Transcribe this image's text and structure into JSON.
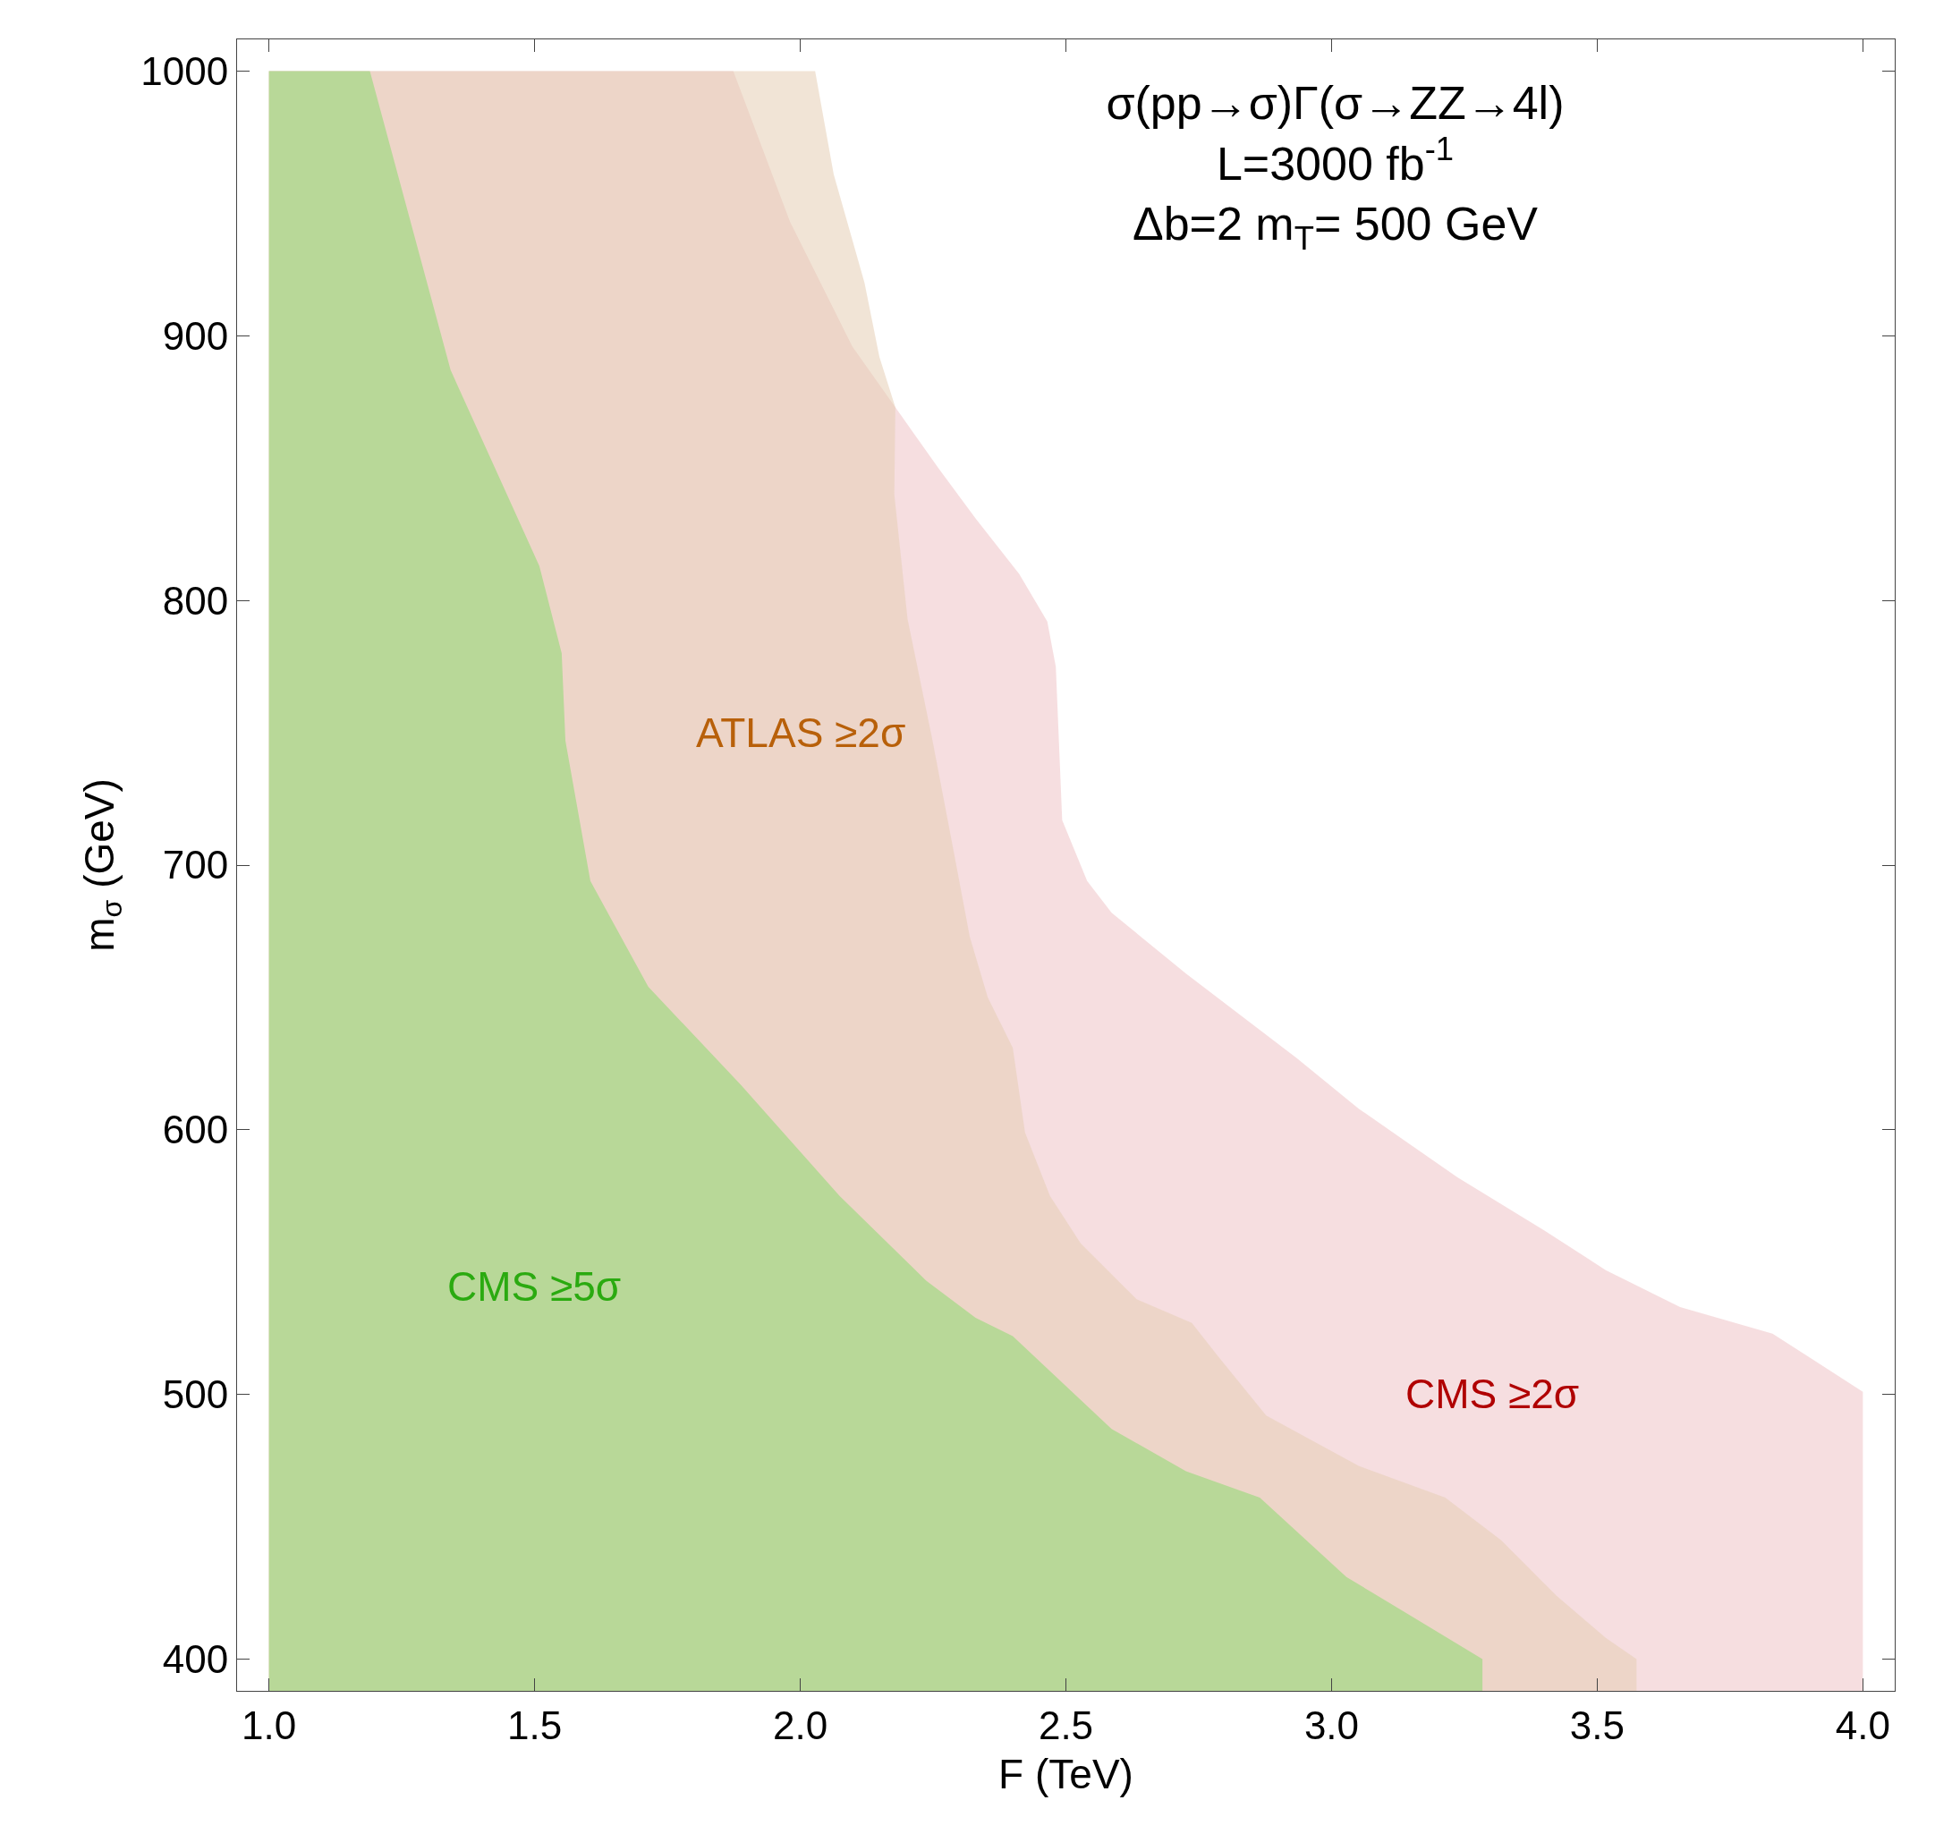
{
  "chart_data": {
    "type": "area",
    "title": "σ(pp→σ)Γ(σ→ZZ→4l)\nL=3000 fb$^{-1}$\nΔb=2 m$_{T}$= 500 GeV",
    "xlabel": "F (TeV)",
    "ylabel": "m$_{σ}$ (GeV)",
    "xlim": [
      0.94,
      4.06
    ],
    "ylim": [
      388,
      1012
    ],
    "xticks": [
      {
        "value": 1,
        "label": "1.0"
      },
      {
        "value": 1.5,
        "label": "1.5"
      },
      {
        "value": 2,
        "label": "2.0"
      },
      {
        "value": 2.5,
        "label": "2.5"
      },
      {
        "value": 3,
        "label": "3.0"
      },
      {
        "value": 3.5,
        "label": "3.5"
      },
      {
        "value": 4,
        "label": "4.0"
      }
    ],
    "yticks": [
      400,
      500,
      600,
      700,
      800,
      900,
      1000
    ],
    "series": [
      {
        "color": "#f0c8cc",
        "x": [
          1.0,
          1.874,
          1.981,
          2.098,
          2.179,
          2.26,
          2.33,
          2.412,
          2.465,
          2.481,
          2.493,
          2.54,
          2.586,
          2.726,
          2.935,
          3.051,
          3.237,
          3.4,
          3.516,
          3.656,
          3.83,
          4.0,
          4.0
        ],
        "values": [
          1000,
          1000,
          943,
          896,
          873,
          850,
          831,
          810,
          792,
          775,
          717,
          694,
          682,
          659,
          627,
          608,
          582,
          562,
          547,
          533,
          523,
          501,
          400
        ]
      },
      {
        "color": "#e6cdb5",
        "x": [
          1.0,
          2.028,
          2.063,
          2.121,
          2.149,
          2.179,
          2.177,
          2.202,
          2.249,
          2.288,
          2.319,
          2.353,
          2.4,
          2.423,
          2.47,
          2.528,
          2.633,
          2.737,
          2.784,
          2.877,
          3.051,
          3.214,
          3.319,
          3.423,
          3.516,
          3.574
        ],
        "values": [
          1000,
          1000,
          961,
          920,
          892,
          873,
          840,
          793,
          747,
          706,
          673,
          650,
          631,
          599,
          575,
          557,
          536,
          527,
          515,
          492,
          473,
          461,
          445,
          424,
          408,
          400
        ]
      },
      {
        "color": "#b8d898",
        "x": [
          1.0,
          1.19,
          1.342,
          1.509,
          1.551,
          1.558,
          1.605,
          1.714,
          1.888,
          2.074,
          2.237,
          2.33,
          2.4,
          2.586,
          2.726,
          2.865,
          3.028,
          3.144,
          3.284
        ],
        "values": [
          1000,
          1000,
          887,
          813,
          780,
          747,
          694,
          654,
          617,
          575,
          543,
          529,
          522,
          487,
          471,
          461,
          431,
          417,
          400
        ]
      }
    ],
    "annotations": [
      "CMS ≥2σ",
      "ATLAS ≥2σ",
      "CMS ≥5σ"
    ]
  }
}
